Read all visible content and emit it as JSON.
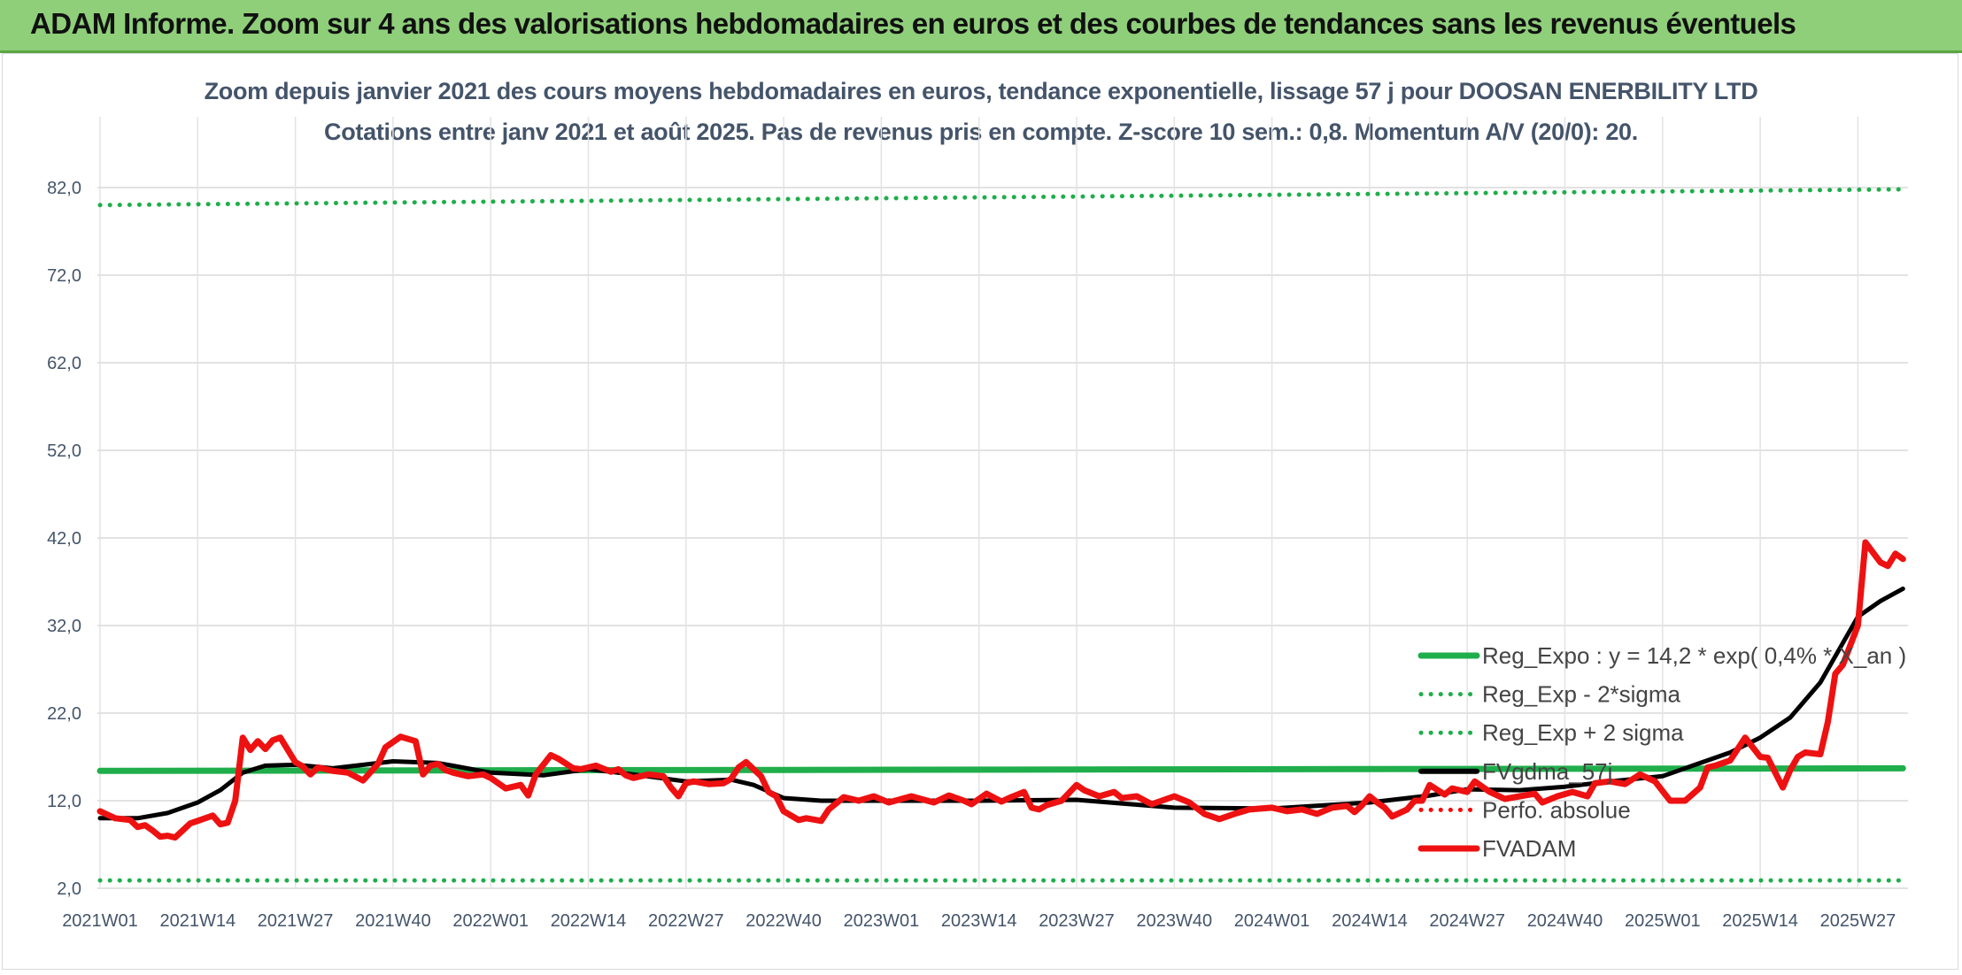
{
  "banner": {
    "title": "ADAM Informe. Zoom sur 4 ans des valorisations hebdomadaires en euros et des courbes de tendances sans les revenus éventuels"
  },
  "chart_data": {
    "type": "line",
    "title": "Zoom depuis janvier 2021 des cours moyens hebdomadaires en euros, tendance exponentielle, lissage 57 j pour DOOSAN ENERBILITY LTD",
    "subtitle": "Cotations entre janv 2021 et août 2025. Pas de revenus pris en compte. Z-score 10 sem.: 0,8. Momentum A/V (20/0): 20.",
    "y_ticks": [
      "2,0",
      "12,0",
      "22,0",
      "32,0",
      "42,0",
      "52,0",
      "62,0",
      "72,0",
      "82,0"
    ],
    "ylim": [
      2,
      82
    ],
    "x_ticks": [
      "2021W01",
      "2021W14",
      "2021W27",
      "2021W40",
      "2022W01",
      "2022W14",
      "2022W27",
      "2022W40",
      "2023W01",
      "2023W14",
      "2023W27",
      "2023W40",
      "2024W01",
      "2024W14",
      "2024W27",
      "2024W40",
      "2025W01",
      "2025W14",
      "2025W27"
    ],
    "grid": true,
    "legend_position": "right",
    "series": [
      {
        "name": "Reg_Expo : y = 14,2 * exp( 0,4% *  X_an )",
        "color": "#1fae4b",
        "style": "solid",
        "x": [
          "2021W01",
          "2025W33"
        ],
        "values": [
          15.4,
          15.7
        ]
      },
      {
        "name": "Reg_Exp - 2*sigma",
        "color": "#1fae4b",
        "style": "dotted",
        "x": [
          "2021W01",
          "2025W33"
        ],
        "values": [
          2.9,
          2.9
        ]
      },
      {
        "name": "Reg_Exp + 2 sigma",
        "color": "#1fae4b",
        "style": "dotted",
        "x": [
          "2021W01",
          "2025W33"
        ],
        "values": [
          80.0,
          81.8
        ]
      },
      {
        "name": "FVgdma_57j",
        "color": "#000000",
        "style": "solid",
        "x": [
          "2021W01",
          "2021W06",
          "2021W10",
          "2021W14",
          "2021W17",
          "2021W20",
          "2021W23",
          "2021W27",
          "2021W32",
          "2021W40",
          "2021W46",
          "2022W01",
          "2022W08",
          "2022W14",
          "2022W20",
          "2022W27",
          "2022W33",
          "2022W36",
          "2022W40",
          "2022W45",
          "2023W01",
          "2023W14",
          "2023W27",
          "2023W40",
          "2024W01",
          "2024W14",
          "2024W22",
          "2024W27",
          "2024W34",
          "2024W40",
          "2024W46",
          "2025W01",
          "2025W05",
          "2025W10",
          "2025W14",
          "2025W18",
          "2025W22",
          "2025W25",
          "2025W27",
          "2025W30",
          "2025W33"
        ],
        "values": [
          10.0,
          10.0,
          10.6,
          11.8,
          13.2,
          15.2,
          16.0,
          16.1,
          15.7,
          16.5,
          16.3,
          15.2,
          14.9,
          15.6,
          15.0,
          14.2,
          14.4,
          13.8,
          12.3,
          12.0,
          12.0,
          12.0,
          12.1,
          11.2,
          11.1,
          11.8,
          12.6,
          13.3,
          13.2,
          13.6,
          14.2,
          14.8,
          16.0,
          17.5,
          19.2,
          21.5,
          25.5,
          30.0,
          33.0,
          34.8,
          36.2
        ]
      },
      {
        "name": "Perfo. absolue",
        "color": "#ff0000",
        "style": "dotted",
        "x": [],
        "values": []
      },
      {
        "name": "FVADAM",
        "color": "#ee1111",
        "style": "solid",
        "x": [
          "2021W01",
          "2021W03",
          "2021W05",
          "2021W06",
          "2021W07",
          "2021W08",
          "2021W09",
          "2021W10",
          "2021W11",
          "2021W12",
          "2021W13",
          "2021W14",
          "2021W15",
          "2021W16",
          "2021W17",
          "2021W18",
          "2021W19",
          "2021W20",
          "2021W21",
          "2021W22",
          "2021W23",
          "2021W24",
          "2021W25",
          "2021W27",
          "2021W28",
          "2021W29",
          "2021W30",
          "2021W32",
          "2021W34",
          "2021W36",
          "2021W38",
          "2021W39",
          "2021W41",
          "2021W43",
          "2021W44",
          "2021W45",
          "2021W46",
          "2021W47",
          "2021W48",
          "2021W50",
          "2021W52",
          "2022W01",
          "2022W03",
          "2022W05",
          "2022W06",
          "2022W07",
          "2022W09",
          "2022W10",
          "2022W12",
          "2022W13",
          "2022W15",
          "2022W17",
          "2022W18",
          "2022W19",
          "2022W20",
          "2022W22",
          "2022W24",
          "2022W25",
          "2022W26",
          "2022W27",
          "2022W28",
          "2022W30",
          "2022W32",
          "2022W33",
          "2022W34",
          "2022W35",
          "2022W37",
          "2022W38",
          "2022W39",
          "2022W40",
          "2022W42",
          "2022W43",
          "2022W45",
          "2022W46",
          "2022W48",
          "2022W50",
          "2022W52",
          "2023W02",
          "2023W05",
          "2023W08",
          "2023W10",
          "2023W12",
          "2023W13",
          "2023W15",
          "2023W17",
          "2023W18",
          "2023W20",
          "2023W21",
          "2023W22",
          "2023W23",
          "2023W25",
          "2023W27",
          "2023W28",
          "2023W30",
          "2023W32",
          "2023W33",
          "2023W35",
          "2023W37",
          "2023W40",
          "2023W42",
          "2023W44",
          "2023W46",
          "2023W48",
          "2023W50",
          "2024W01",
          "2024W03",
          "2024W05",
          "2024W07",
          "2024W09",
          "2024W11",
          "2024W12",
          "2024W13",
          "2024W14",
          "2024W15",
          "2024W16",
          "2024W17",
          "2024W19",
          "2024W20",
          "2024W21",
          "2024W22",
          "2024W24",
          "2024W25",
          "2024W26",
          "2024W27",
          "2024W28",
          "2024W30",
          "2024W32",
          "2024W34",
          "2024W36",
          "2024W37",
          "2024W39",
          "2024W41",
          "2024W43",
          "2024W44",
          "2024W46",
          "2024W48",
          "2024W50",
          "2024W52",
          "2025W02",
          "2025W04",
          "2025W06",
          "2025W07",
          "2025W08",
          "2025W09",
          "2025W10",
          "2025W12",
          "2025W14",
          "2025W15",
          "2025W17",
          "2025W18",
          "2025W19",
          "2025W20",
          "2025W22",
          "2025W23",
          "2025W24",
          "2025W25",
          "2025W27",
          "2025W28",
          "2025W30",
          "2025W31",
          "2025W32",
          "2025W33"
        ],
        "values": [
          10.8,
          10.0,
          9.8,
          9.0,
          9.2,
          8.6,
          7.9,
          8.0,
          7.8,
          8.6,
          9.4,
          9.7,
          10.0,
          10.3,
          9.3,
          9.5,
          12.0,
          19.2,
          17.8,
          18.8,
          17.9,
          18.9,
          19.2,
          16.4,
          15.9,
          15.0,
          15.8,
          15.4,
          15.2,
          14.3,
          16.2,
          18.1,
          19.3,
          18.8,
          15.0,
          16.0,
          16.2,
          15.5,
          15.2,
          14.8,
          15.0,
          14.6,
          13.4,
          13.8,
          12.6,
          15.0,
          17.2,
          16.8,
          15.7,
          15.6,
          16.0,
          15.3,
          15.6,
          14.9,
          14.6,
          15.0,
          14.8,
          13.5,
          12.5,
          14.0,
          14.2,
          13.9,
          14.0,
          14.5,
          15.8,
          16.4,
          14.8,
          13.0,
          12.5,
          10.8,
          9.8,
          10.0,
          9.7,
          11.0,
          12.4,
          12.0,
          12.5,
          11.8,
          12.5,
          11.8,
          12.6,
          12.0,
          11.6,
          12.8,
          11.9,
          12.3,
          13.0,
          11.2,
          11.0,
          11.5,
          12.0,
          13.8,
          13.2,
          12.5,
          13.0,
          12.3,
          12.5,
          11.6,
          12.5,
          11.8,
          10.5,
          9.9,
          10.5,
          11.0,
          11.2,
          10.8,
          11.0,
          10.5,
          11.2,
          11.4,
          10.7,
          11.5,
          12.5,
          11.8,
          11.2,
          10.2,
          11.0,
          12.0,
          12.0,
          13.8,
          12.7,
          13.4,
          13.2,
          13.0,
          14.2,
          13.0,
          12.2,
          12.5,
          12.8,
          11.8,
          12.5,
          13.0,
          12.5,
          14.0,
          14.2,
          13.9,
          15.0,
          14.2,
          12.0,
          12.0,
          13.5,
          15.8,
          16.0,
          16.3,
          16.6,
          19.2,
          17.0,
          16.9,
          13.5,
          15.5,
          17.0,
          17.5,
          17.3,
          21.0,
          26.5,
          27.5,
          32.0,
          41.5,
          39.2,
          38.8,
          40.2,
          39.6
        ]
      }
    ]
  }
}
